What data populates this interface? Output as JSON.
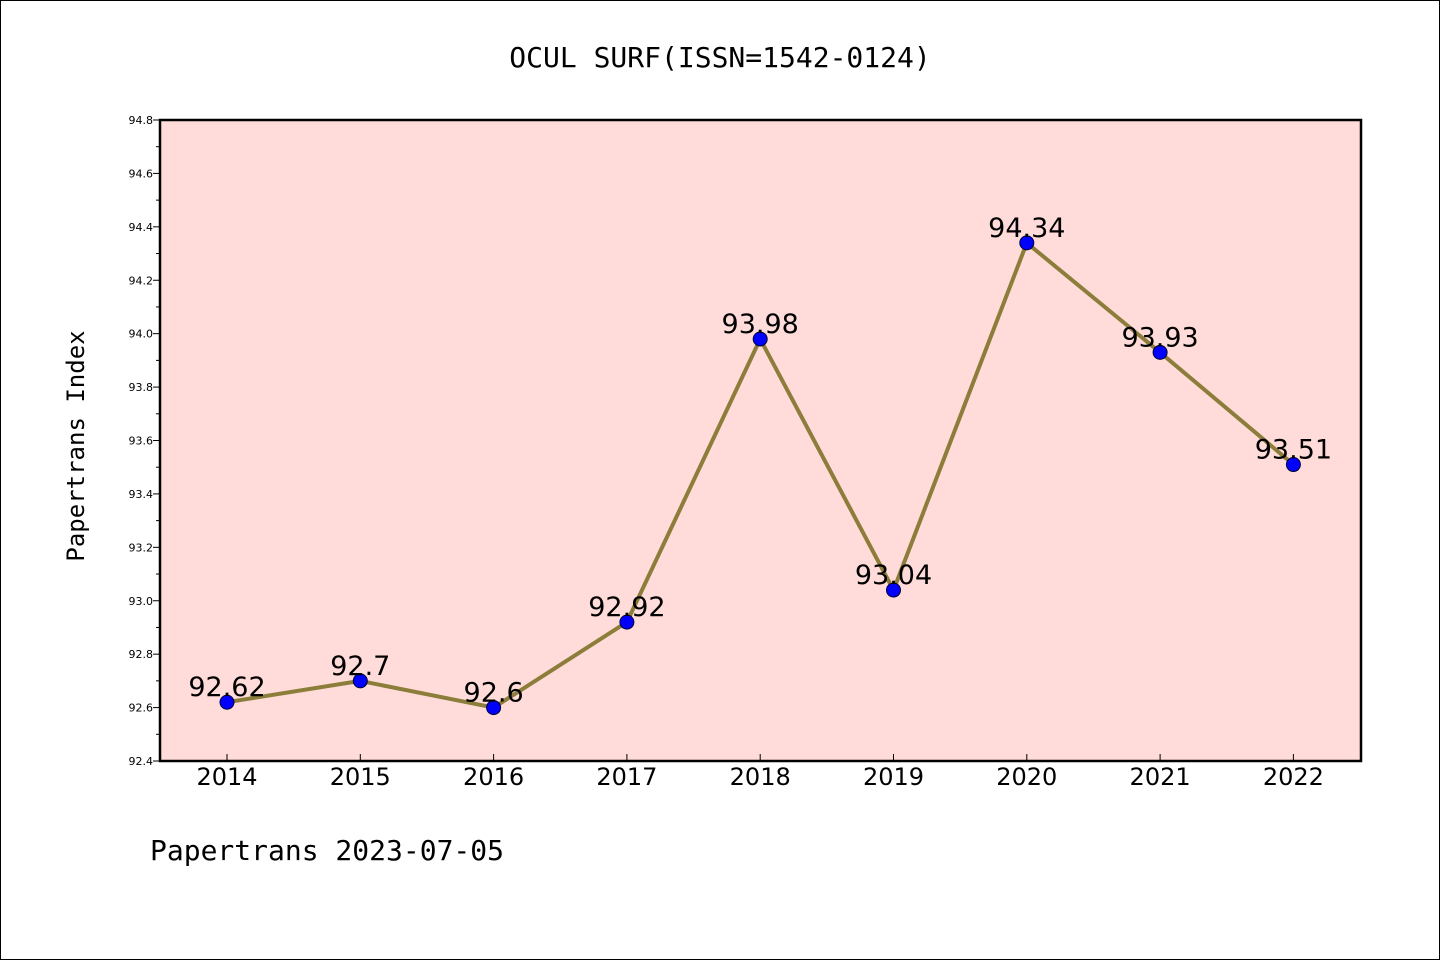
{
  "chart_data": {
    "type": "line",
    "title": "OCUL SURF(ISSN=1542-0124)",
    "xlabel": "",
    "ylabel": "Papertrans Index",
    "categories": [
      "2014",
      "2015",
      "2016",
      "2017",
      "2018",
      "2019",
      "2020",
      "2021",
      "2022"
    ],
    "series": [
      {
        "values": [
          92.62,
          92.7,
          92.6,
          92.92,
          93.98,
          93.04,
          94.34,
          93.93,
          93.51
        ],
        "data_labels": [
          "92.62",
          "92.7",
          "92.6",
          "92.92",
          "93.98",
          "93.04",
          "94.34",
          "93.93",
          "93.51"
        ],
        "line_color": "#8c7d3a",
        "marker_color": "#0000ff"
      }
    ],
    "ylim": [
      92.4,
      94.8
    ],
    "yticks": [
      "92.4",
      "92.6",
      "92.8",
      "93.0",
      "93.2",
      "93.4",
      "93.6",
      "93.8",
      "94.0",
      "94.2",
      "94.4",
      "94.6",
      "94.8"
    ],
    "grid": false,
    "legend": "none",
    "plot_background": "#ffdcd9"
  },
  "footer": {
    "text": "Papertrans 2023-07-05"
  }
}
